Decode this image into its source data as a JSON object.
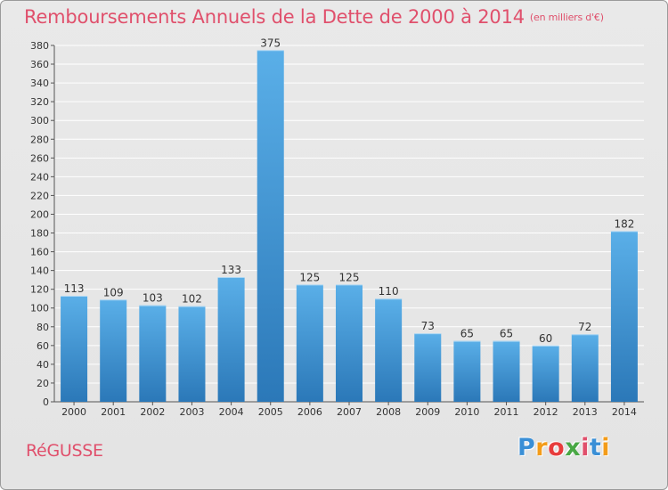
{
  "title": "Remboursements Annuels de la Dette de 2000 à 2014",
  "unit_label": "(en milliers d'€)",
  "commune": "RéGUSSE",
  "logo": {
    "letters": [
      "P",
      "r",
      "o",
      "x",
      "i",
      "t",
      "i"
    ],
    "colors": [
      "#3a8fd6",
      "#f39c1a",
      "#e73c3c",
      "#49a845",
      "#e0506c",
      "#3a8fd6",
      "#f39c1a"
    ]
  },
  "colors": {
    "title": "#e0506c",
    "bar_top": "#5aafe8",
    "bar_bottom": "#2b78b8",
    "grid": "#ffffff"
  },
  "chart_data": {
    "type": "bar",
    "categories": [
      "2000",
      "2001",
      "2002",
      "2003",
      "2004",
      "2005",
      "2006",
      "2007",
      "2008",
      "2009",
      "2010",
      "2011",
      "2012",
      "2013",
      "2014"
    ],
    "values": [
      113,
      109,
      103,
      102,
      133,
      375,
      125,
      125,
      110,
      73,
      65,
      65,
      60,
      72,
      182
    ],
    "ylim": [
      0,
      380
    ],
    "yticks": [
      0,
      20,
      40,
      60,
      80,
      100,
      120,
      140,
      160,
      180,
      200,
      220,
      240,
      260,
      280,
      300,
      320,
      340,
      360,
      380
    ],
    "grid": true,
    "data_labels": true
  }
}
